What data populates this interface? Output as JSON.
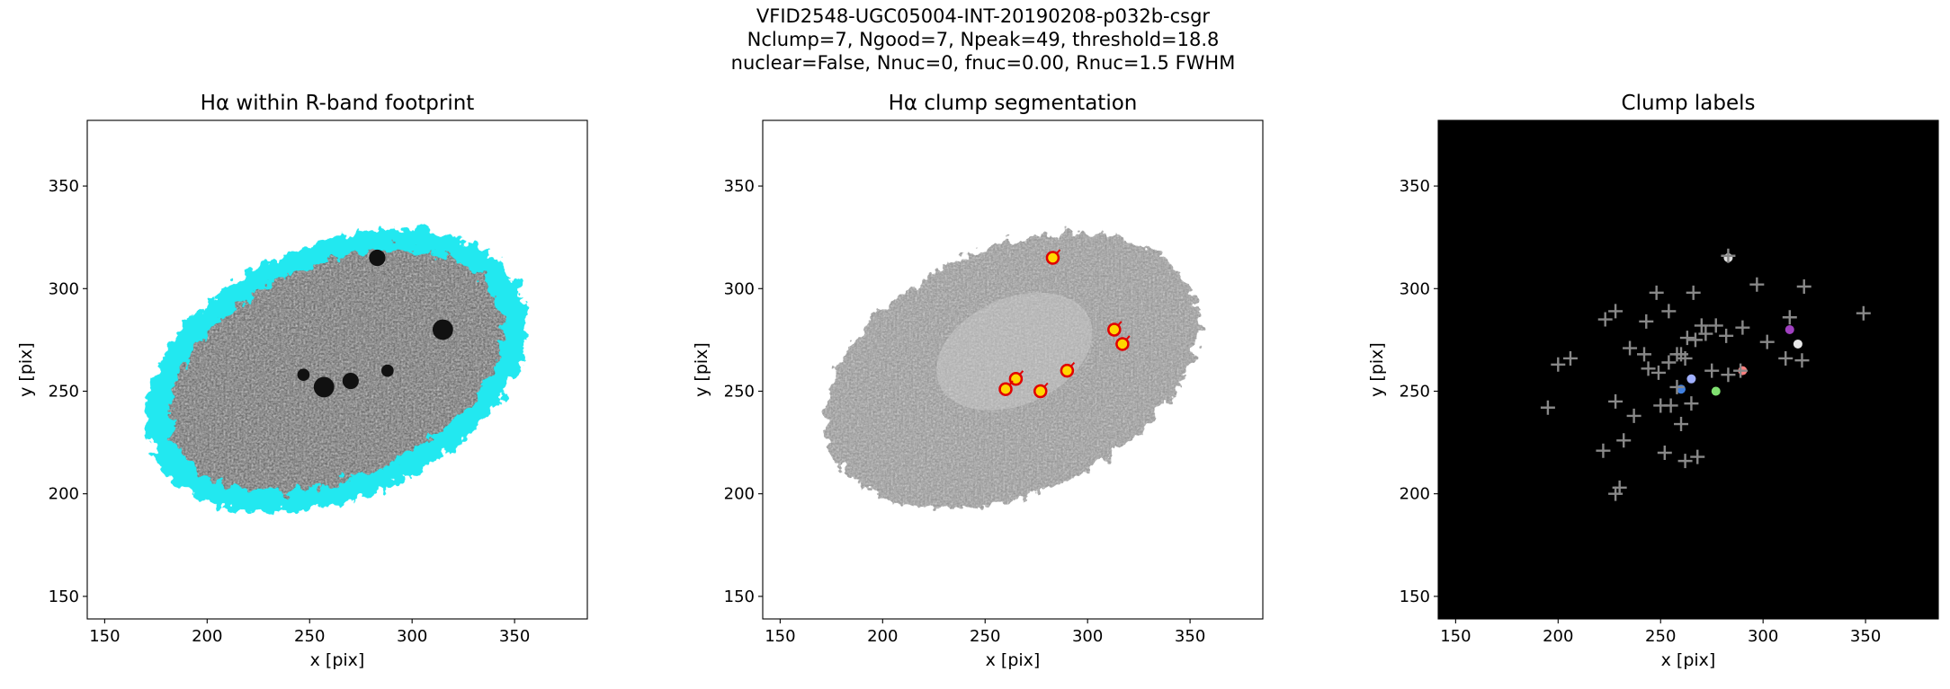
{
  "suptitle": [
    "VFID2548-UGC05004-INT-20190208-p032b-csgr",
    "Nclump=7, Ngood=7, Npeak=49, threshold=18.8",
    "nuclear=False, Nnuc=0, fnuc=0.00, Rnuc=1.5 FWHM"
  ],
  "chart_data": [
    {
      "type": "image",
      "title": "Hα within R-band footprint",
      "xlabel": "x [pix]",
      "ylabel": "y [pix]",
      "xlim": [
        141.5,
        385.5
      ],
      "ylim": [
        139,
        382
      ],
      "xticks": [
        150,
        200,
        250,
        300,
        350
      ],
      "yticks": [
        150,
        200,
        250,
        300,
        350
      ],
      "background": "#ffffff",
      "image": "footprint"
    },
    {
      "type": "image",
      "title": "Hα clump segmentation",
      "xlabel": "x [pix]",
      "ylabel": "y [pix]",
      "xlim": [
        141.5,
        385.5
      ],
      "ylim": [
        139,
        382
      ],
      "xticks": [
        150,
        200,
        250,
        300,
        350
      ],
      "yticks": [
        150,
        200,
        250,
        300,
        350
      ],
      "background": "#ffffff",
      "image": "gray",
      "clumps": {
        "x": [
          283,
          313,
          317,
          290,
          265,
          260,
          277
        ],
        "y": [
          315,
          280,
          273,
          260,
          256,
          251,
          250
        ],
        "color": "#ffd700",
        "edgecolor": "#e00000"
      }
    },
    {
      "type": "image",
      "title": "Clump labels",
      "xlabel": "x [pix]",
      "ylabel": "y [pix]",
      "xlim": [
        141.5,
        385.5
      ],
      "ylim": [
        139,
        382
      ],
      "xticks": [
        150,
        200,
        250,
        300,
        350
      ],
      "yticks": [
        150,
        200,
        250,
        300,
        350
      ],
      "background": "#000000",
      "image": "labels",
      "clumps": {
        "x": [
          283,
          313,
          317,
          290,
          265,
          260,
          277
        ],
        "y": [
          315,
          280,
          273,
          260,
          256,
          251,
          250
        ],
        "colors": [
          "#dddddd",
          "#a040c0",
          "#e8e8e8",
          "#ff8080",
          "#a0b0ff",
          "#4080e0",
          "#80e070"
        ]
      },
      "peaks": {
        "color": "#888888",
        "x": [
          283,
          349,
          320,
          297,
          313,
          290,
          319,
          311,
          302,
          282,
          270,
          267,
          263,
          258,
          254,
          249,
          244,
          235,
          228,
          223,
          206,
          200,
          195,
          237,
          228,
          250,
          255,
          260,
          265,
          275,
          277,
          272,
          258,
          260,
          254,
          262,
          266,
          268,
          248,
          242,
          232,
          230,
          228,
          222,
          252,
          262,
          283,
          243,
          289
        ],
        "y": [
          316,
          288,
          301,
          302,
          286,
          281,
          265,
          266,
          274,
          277,
          282,
          275,
          276,
          268,
          264,
          259,
          261,
          271,
          289,
          285,
          266,
          263,
          242,
          238,
          245,
          243,
          243,
          234,
          244,
          260,
          282,
          278,
          252,
          268,
          289,
          266,
          298,
          218,
          298,
          268,
          226,
          203,
          200,
          221,
          220,
          216,
          258,
          284,
          260
        ]
      }
    }
  ]
}
